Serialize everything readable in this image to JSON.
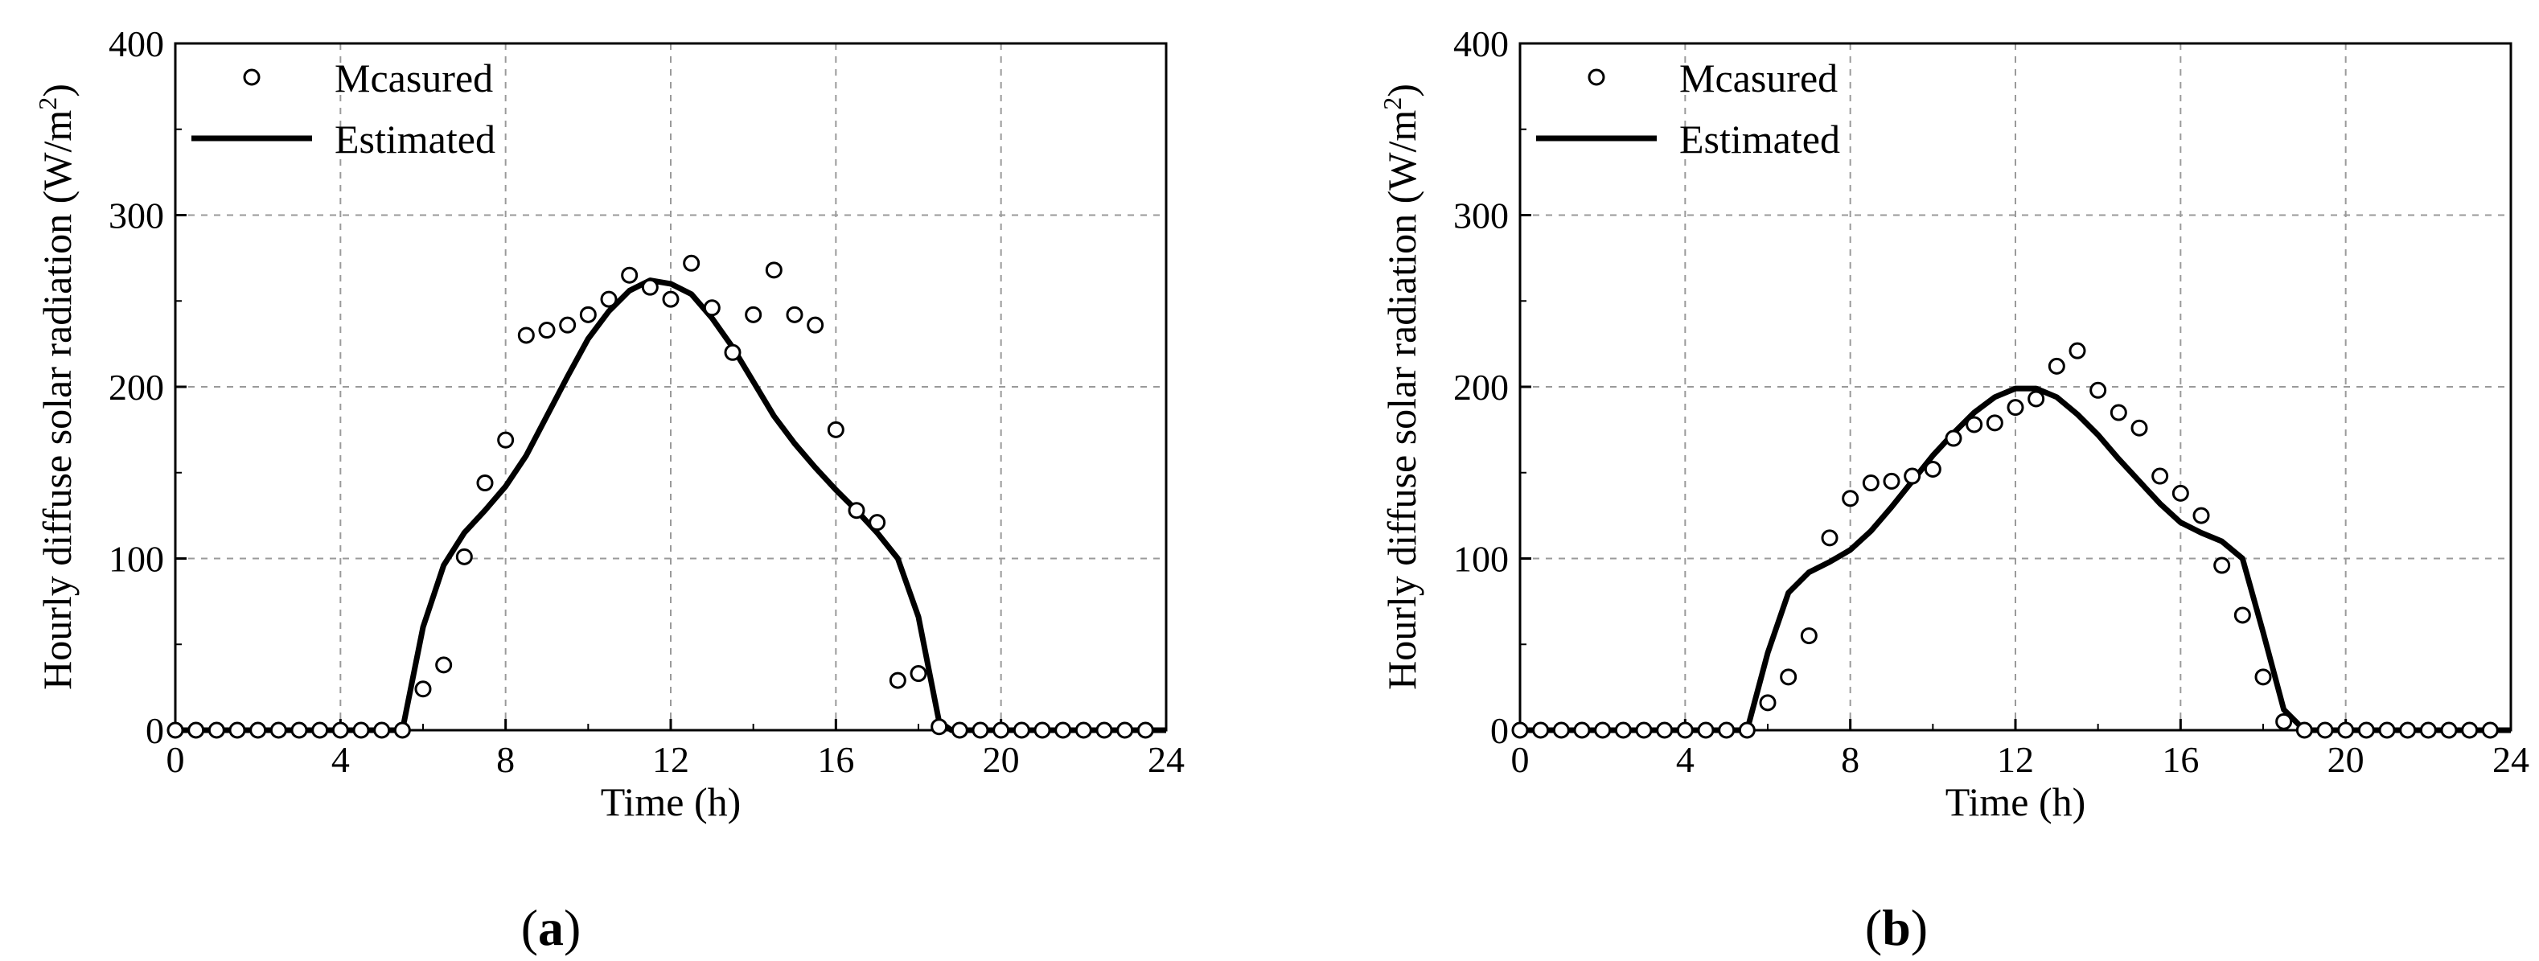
{
  "chart_data": [
    {
      "panel": "a",
      "type": "scatter+line",
      "title": "",
      "xlabel": "Time (h)",
      "ylabel": "Hourly diffuse solar radiation (W/m",
      "ylabel_sup": "2",
      "ylabel_close": ")",
      "xlim": [
        0,
        24
      ],
      "ylim": [
        0,
        400
      ],
      "xticks": [
        0,
        4,
        8,
        12,
        16,
        20,
        24
      ],
      "yticks": [
        0,
        100,
        200,
        300,
        400
      ],
      "grid": true,
      "legend_position": "top-left",
      "series": [
        {
          "name": "Mcasured",
          "kind": "markers",
          "x": [
            0,
            0.5,
            1,
            1.5,
            2,
            2.5,
            3,
            3.5,
            4,
            4.5,
            5,
            5.5,
            6,
            6.5,
            7,
            7.5,
            8,
            8.5,
            9,
            9.5,
            10,
            10.5,
            11,
            11.5,
            12,
            12.5,
            13,
            13.5,
            14,
            14.5,
            15,
            15.5,
            16,
            16.5,
            17,
            17.5,
            18,
            18.5,
            19,
            19.5,
            20,
            20.5,
            21,
            21.5,
            22,
            22.5,
            23,
            23.5
          ],
          "y": [
            0,
            0,
            0,
            0,
            0,
            0,
            0,
            0,
            0,
            0,
            0,
            0,
            24,
            38,
            101,
            144,
            169,
            230,
            233,
            236,
            242,
            251,
            265,
            258,
            251,
            272,
            246,
            220,
            242,
            268,
            242,
            236,
            175,
            128,
            121,
            29,
            33,
            2,
            0,
            0,
            0,
            0,
            0,
            0,
            0,
            0,
            0,
            0
          ]
        },
        {
          "name": "Estimated",
          "kind": "line",
          "x": [
            0,
            5,
            5.5,
            6,
            6.5,
            7,
            7.5,
            8,
            8.5,
            9,
            9.5,
            10,
            10.5,
            11,
            11.5,
            12,
            12.5,
            13,
            13.5,
            14,
            14.5,
            15,
            15.5,
            16,
            16.5,
            17,
            17.5,
            18,
            18.5,
            18.8,
            19,
            24
          ],
          "y": [
            0,
            0,
            0,
            60,
            96,
            115,
            128,
            142,
            160,
            183,
            206,
            228,
            244,
            256,
            262,
            260,
            254,
            240,
            223,
            203,
            183,
            167,
            153,
            140,
            128,
            115,
            100,
            66,
            5,
            0,
            0,
            0
          ]
        }
      ],
      "panel_label": "a"
    },
    {
      "panel": "b",
      "type": "scatter+line",
      "title": "",
      "xlabel": "Time (h)",
      "ylabel": "Hourly diffuse solar radiation (W/m",
      "ylabel_sup": "2",
      "ylabel_close": ")",
      "xlim": [
        0,
        24
      ],
      "ylim": [
        0,
        400
      ],
      "xticks": [
        0,
        4,
        8,
        12,
        16,
        20,
        24
      ],
      "yticks": [
        0,
        100,
        200,
        300,
        400
      ],
      "grid": true,
      "legend_position": "top-left",
      "series": [
        {
          "name": "Mcasured",
          "kind": "markers",
          "x": [
            0,
            0.5,
            1,
            1.5,
            2,
            2.5,
            3,
            3.5,
            4,
            4.5,
            5,
            5.5,
            6,
            6.5,
            7,
            7.5,
            8,
            8.5,
            9,
            9.5,
            10,
            10.5,
            11,
            11.5,
            12,
            12.5,
            13,
            13.5,
            14,
            14.5,
            15,
            15.5,
            16,
            16.5,
            17,
            17.5,
            18,
            18.5,
            19,
            19.5,
            20,
            20.5,
            21,
            21.5,
            22,
            22.5,
            23,
            23.5
          ],
          "y": [
            0,
            0,
            0,
            0,
            0,
            0,
            0,
            0,
            0,
            0,
            0,
            0,
            16,
            31,
            55,
            112,
            135,
            144,
            145,
            148,
            152,
            170,
            178,
            179,
            188,
            193,
            212,
            221,
            198,
            185,
            176,
            148,
            138,
            125,
            96,
            67,
            31,
            5,
            0,
            0,
            0,
            0,
            0,
            0,
            0,
            0,
            0,
            0
          ]
        },
        {
          "name": "Estimated",
          "kind": "line",
          "x": [
            0,
            5,
            5.5,
            6,
            6.5,
            7,
            7.5,
            8,
            8.5,
            9,
            9.5,
            10,
            10.5,
            11,
            11.5,
            12,
            12.5,
            13,
            13.5,
            14,
            14.5,
            15,
            15.5,
            16,
            16.5,
            17,
            17.5,
            18,
            18.5,
            19,
            19.5,
            24
          ],
          "y": [
            0,
            0,
            0,
            45,
            80,
            92,
            98,
            105,
            116,
            130,
            145,
            160,
            173,
            185,
            194,
            199,
            199,
            194,
            184,
            172,
            158,
            145,
            132,
            121,
            115,
            110,
            100,
            57,
            12,
            0,
            0,
            0
          ]
        }
      ],
      "panel_label": "b"
    }
  ],
  "panel_labels": [
    {
      "open": "(",
      "letter": "a",
      "close": ")"
    },
    {
      "open": "(",
      "letter": "b",
      "close": ")"
    }
  ]
}
